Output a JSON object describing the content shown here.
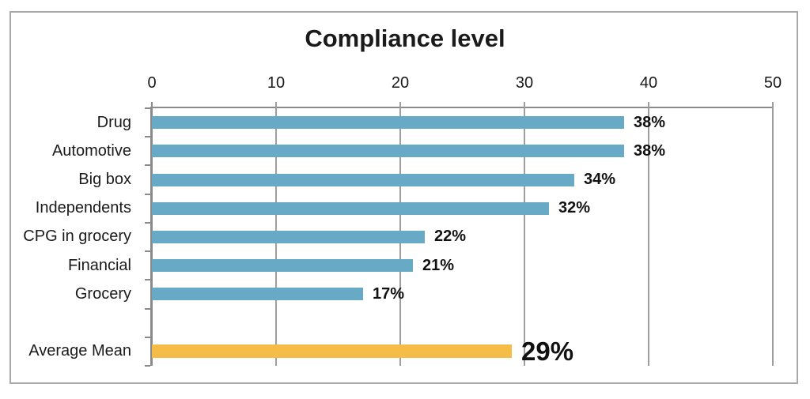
{
  "chart_data": {
    "type": "bar",
    "orientation": "horizontal",
    "title": "Compliance level",
    "categories": [
      "Drug",
      "Automotive",
      "Big box",
      "Independents",
      "CPG in grocery",
      "Financial",
      "Grocery",
      "",
      "Average Mean"
    ],
    "values": [
      38,
      38,
      34,
      32,
      22,
      21,
      17,
      null,
      29
    ],
    "value_labels": [
      "38%",
      "38%",
      "34%",
      "32%",
      "22%",
      "21%",
      "17%",
      "",
      "29%"
    ],
    "highlight_index": 8,
    "x_ticks": [
      0,
      10,
      20,
      30,
      40,
      50
    ],
    "x_tick_labels": [
      "0",
      "10",
      "20",
      "30",
      "40",
      "50"
    ],
    "xlim": [
      0,
      50
    ],
    "grid": true,
    "legend": "none",
    "colors": {
      "bar": "#68A9C5",
      "highlight_bar": "#F5BC47",
      "gridline": "#9E9E9E",
      "axis": "#8A8A8A",
      "frame_border": "#A8A8A8",
      "text": "#1A1A1A",
      "background": "#FFFFFF"
    }
  }
}
